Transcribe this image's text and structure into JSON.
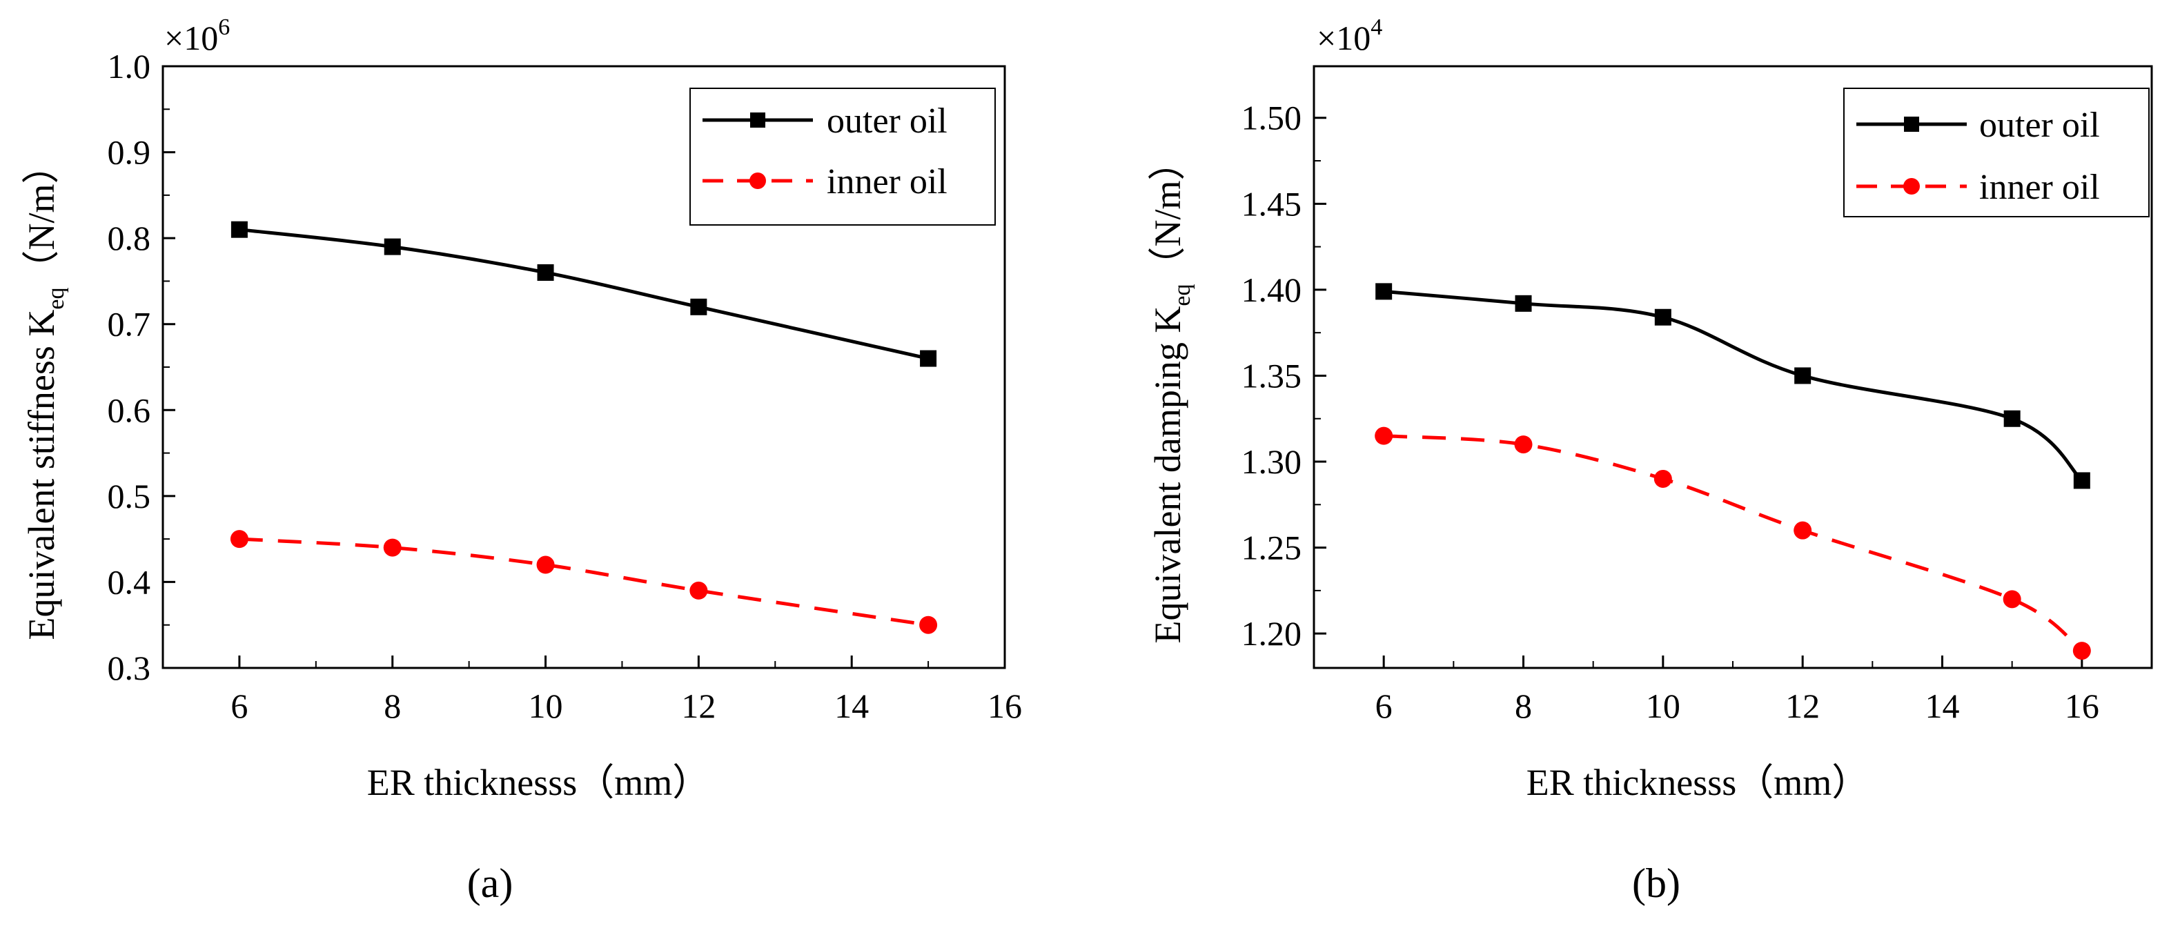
{
  "chart_data": [
    {
      "type": "line",
      "panel_label": "(a)",
      "ylabel_main": "Equivalent stiffness K",
      "ylabel_sub": "eq",
      "ylabel_unit": "（N/m）",
      "xlabel": "ER thicknesss（mm）",
      "y_multiplier": "×10",
      "y_multiplier_exp": "6",
      "xlim": [
        5,
        16
      ],
      "ylim": [
        0.3,
        1.0
      ],
      "xticks": [
        "6",
        "8",
        "10",
        "12",
        "14",
        "16"
      ],
      "xtick_values": [
        6,
        8,
        10,
        12,
        14,
        16
      ],
      "yticks": [
        "0.3",
        "0.4",
        "0.5",
        "0.6",
        "0.7",
        "0.8",
        "0.9",
        "1.0"
      ],
      "ytick_values": [
        0.3,
        0.4,
        0.5,
        0.6,
        0.7,
        0.8,
        0.9,
        1.0
      ],
      "legend_position": "top-right",
      "series": [
        {
          "name": "outer oil",
          "color": "#000000",
          "marker": "square",
          "dashed": false,
          "x": [
            6,
            8,
            10,
            12,
            15
          ],
          "y": [
            0.81,
            0.79,
            0.76,
            0.72,
            0.66
          ]
        },
        {
          "name": "inner oil",
          "color": "#ff0000",
          "marker": "circle",
          "dashed": true,
          "x": [
            6,
            8,
            10,
            12,
            15
          ],
          "y": [
            0.45,
            0.44,
            0.42,
            0.39,
            0.35
          ]
        }
      ]
    },
    {
      "type": "line",
      "panel_label": "(b)",
      "ylabel_main": "Equivalent damping K",
      "ylabel_sub": "eq",
      "ylabel_unit": "（N/m）",
      "xlabel": "ER thicknesss（mm）",
      "y_multiplier": "×10",
      "y_multiplier_exp": "4",
      "xlim": [
        5,
        17
      ],
      "ylim": [
        1.18,
        1.53
      ],
      "xticks": [
        "6",
        "8",
        "10",
        "12",
        "14",
        "16"
      ],
      "xtick_values": [
        6,
        8,
        10,
        12,
        14,
        16
      ],
      "yticks": [
        "1.20",
        "1.25",
        "1.30",
        "1.35",
        "1.40",
        "1.45",
        "1.50"
      ],
      "ytick_values": [
        1.2,
        1.25,
        1.3,
        1.35,
        1.4,
        1.45,
        1.5
      ],
      "legend_position": "top-right",
      "series": [
        {
          "name": "outer oil",
          "color": "#000000",
          "marker": "square",
          "dashed": false,
          "x": [
            6,
            8,
            10,
            12,
            15,
            16
          ],
          "y": [
            1.399,
            1.392,
            1.384,
            1.35,
            1.325,
            1.289
          ]
        },
        {
          "name": "inner oil",
          "color": "#ff0000",
          "marker": "circle",
          "dashed": true,
          "x": [
            6,
            8,
            10,
            12,
            15,
            16
          ],
          "y": [
            1.315,
            1.31,
            1.29,
            1.26,
            1.22,
            1.19
          ]
        }
      ]
    }
  ]
}
